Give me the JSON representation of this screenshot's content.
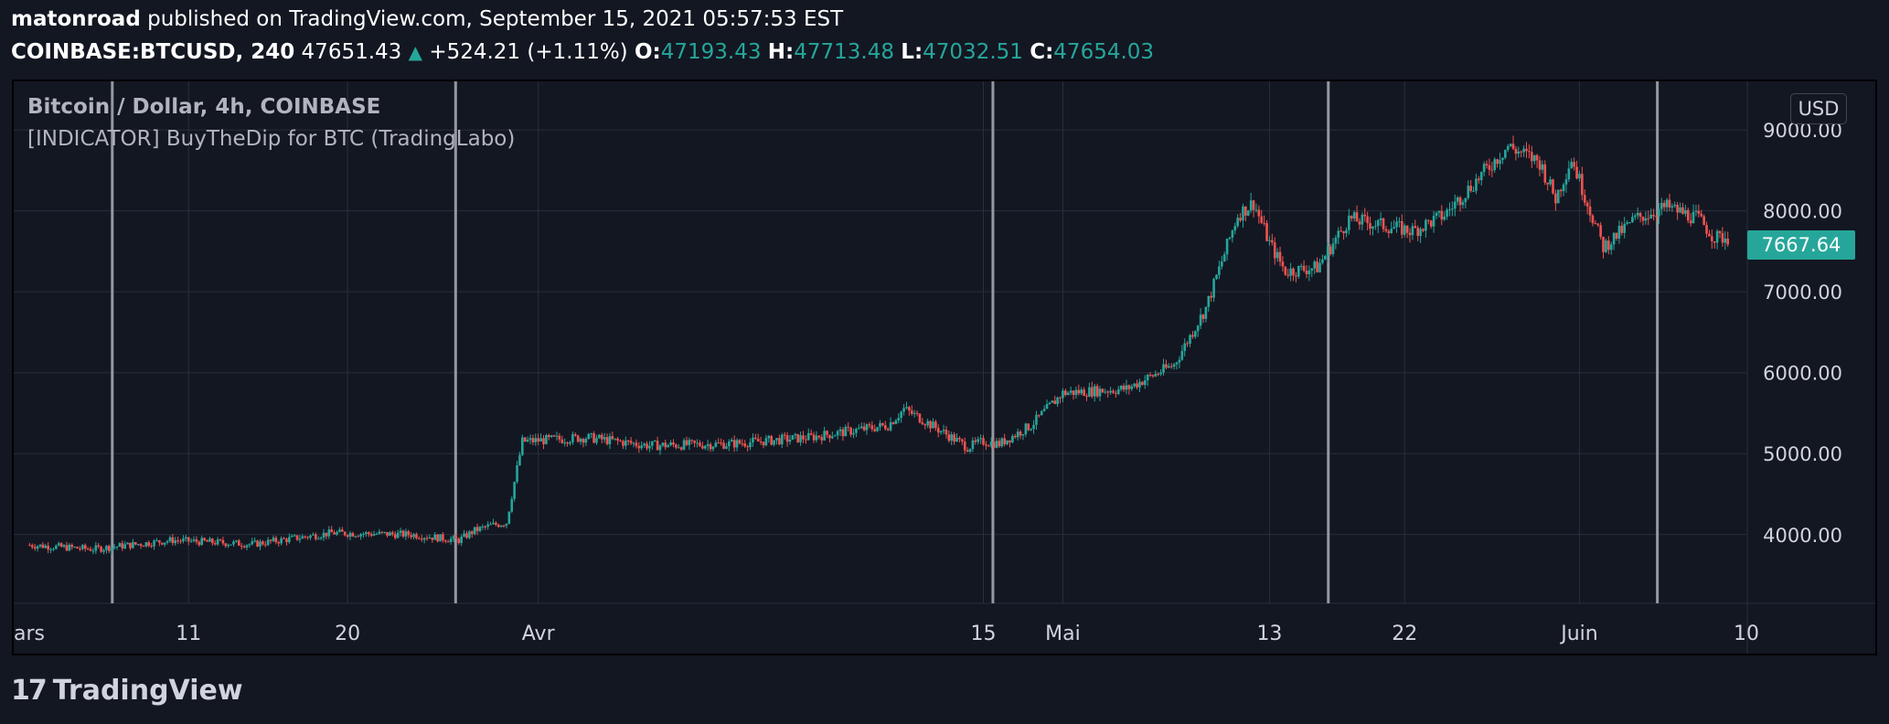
{
  "header": {
    "author": "matonroad",
    "published_text": "published on TradingView.com, September 15, 2021 05:57:53 EST",
    "symbol": "COINBASE:BTCUSD, 240",
    "last": "47651.43",
    "change": "+524.21 (+1.11%)",
    "o_label": "O:",
    "o_value": "47193.43",
    "h_label": "H:",
    "h_value": "47713.48",
    "l_label": "L:",
    "l_value": "47032.51",
    "c_label": "C:",
    "c_value": "47654.03"
  },
  "legend": {
    "title": "Bitcoin / Dollar, 4h, COINBASE",
    "indicator": "[INDICATOR] BuyTheDip for BTC (TradingLabo)"
  },
  "currency": "USD",
  "price_tag": "7667.64",
  "logo_mark": "17",
  "logo_text": "TradingView",
  "colors": {
    "up": "#26a69a",
    "down": "#ef5350",
    "bg": "#131722",
    "grid": "#2a2e39"
  },
  "chart_data": {
    "type": "candlestick",
    "yticks": [
      "9000.00",
      "8000.00",
      "7000.00",
      "6000.00",
      "5000.00",
      "4000.00"
    ],
    "ylim": [
      3150,
      9600
    ],
    "xticks": [
      "ars",
      "11",
      "20",
      "Avr",
      "15",
      "Mai",
      "13",
      "22",
      "Juin",
      "10"
    ],
    "signal_lines_day_index": [
      6.2,
      27.8,
      61.6,
      82.7,
      103.4
    ],
    "x_days": [
      1,
      5,
      10,
      15,
      20,
      25,
      28,
      29,
      30,
      31,
      32,
      36,
      40,
      45,
      50,
      55,
      56,
      57,
      60,
      61,
      62,
      64,
      66,
      70,
      73,
      75,
      77,
      78,
      79,
      80,
      82,
      84,
      88,
      90,
      94,
      96,
      97,
      98,
      100,
      102,
      104,
      106,
      107,
      108
    ],
    "close": [
      3870,
      3820,
      3930,
      3880,
      4020,
      4000,
      3930,
      4050,
      4110,
      4150,
      5150,
      5200,
      5100,
      5120,
      5200,
      5350,
      5550,
      5440,
      5080,
      5150,
      5120,
      5350,
      5750,
      5800,
      6100,
      6800,
      7950,
      8100,
      7600,
      7250,
      7300,
      7900,
      7750,
      7950,
      8800,
      8600,
      8150,
      8650,
      7550,
      7900,
      8050,
      7900,
      7670,
      7668
    ]
  }
}
